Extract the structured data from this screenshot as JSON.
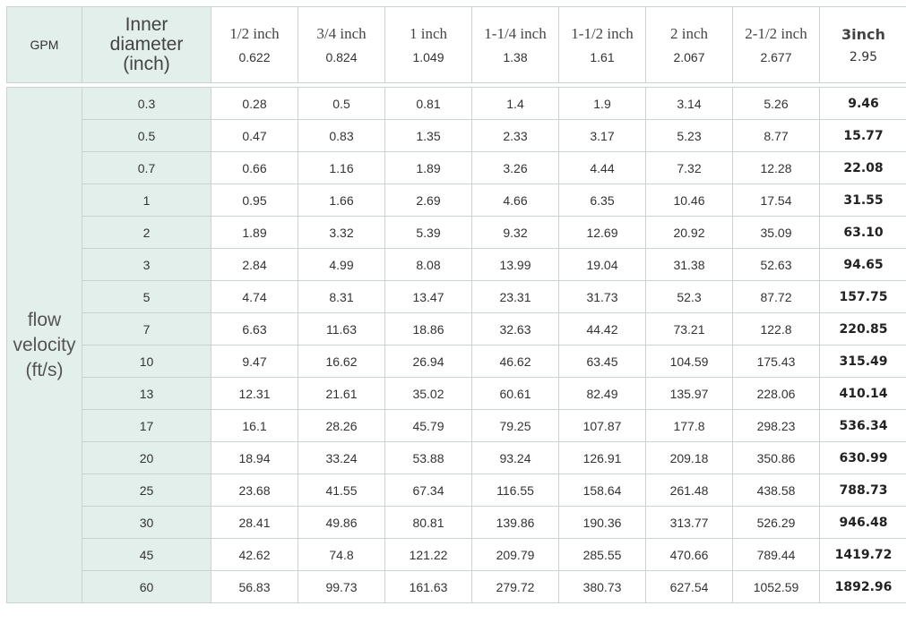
{
  "header": {
    "gpm_label": "GPM",
    "inner_label_lines": [
      "Inner",
      "diameter",
      "(inch)"
    ],
    "columns": [
      {
        "size": "1/2  inch",
        "diameter": "0.622"
      },
      {
        "size": "3/4 inch",
        "diameter": "0.824"
      },
      {
        "size": "1 inch",
        "diameter": "1.049"
      },
      {
        "size": "1-1/4 inch",
        "diameter": "1.38"
      },
      {
        "size": "1-1/2 inch",
        "diameter": "1.61"
      },
      {
        "size": "2 inch",
        "diameter": "2.067"
      },
      {
        "size": "2-1/2 inch",
        "diameter": "2.677"
      },
      {
        "size": "3inch",
        "diameter": "2.95"
      }
    ]
  },
  "row_label_lines": [
    "flow",
    "velocity",
    "(ft/s)"
  ],
  "rows": [
    {
      "gpm": "0.3",
      "values": [
        "0.28",
        "0.5",
        "0.81",
        "1.4",
        "1.9",
        "3.14",
        "5.26",
        "9.46"
      ]
    },
    {
      "gpm": "0.5",
      "values": [
        "0.47",
        "0.83",
        "1.35",
        "2.33",
        "3.17",
        "5.23",
        "8.77",
        "15.77"
      ]
    },
    {
      "gpm": "0.7",
      "values": [
        "0.66",
        "1.16",
        "1.89",
        "3.26",
        "4.44",
        "7.32",
        "12.28",
        "22.08"
      ]
    },
    {
      "gpm": "1",
      "values": [
        "0.95",
        "1.66",
        "2.69",
        "4.66",
        "6.35",
        "10.46",
        "17.54",
        "31.55"
      ]
    },
    {
      "gpm": "2",
      "values": [
        "1.89",
        "3.32",
        "5.39",
        "9.32",
        "12.69",
        "20.92",
        "35.09",
        "63.10"
      ]
    },
    {
      "gpm": "3",
      "values": [
        "2.84",
        "4.99",
        "8.08",
        "13.99",
        "19.04",
        "31.38",
        "52.63",
        "94.65"
      ]
    },
    {
      "gpm": "5",
      "values": [
        "4.74",
        "8.31",
        "13.47",
        "23.31",
        "31.73",
        "52.3",
        "87.72",
        "157.75"
      ]
    },
    {
      "gpm": "7",
      "values": [
        "6.63",
        "11.63",
        "18.86",
        "32.63",
        "44.42",
        "73.21",
        "122.8",
        "220.85"
      ]
    },
    {
      "gpm": "10",
      "values": [
        "9.47",
        "16.62",
        "26.94",
        "46.62",
        "63.45",
        "104.59",
        "175.43",
        "315.49"
      ]
    },
    {
      "gpm": "13",
      "values": [
        "12.31",
        "21.61",
        "35.02",
        "60.61",
        "82.49",
        "135.97",
        "228.06",
        "410.14"
      ]
    },
    {
      "gpm": "17",
      "values": [
        "16.1",
        "28.26",
        "45.79",
        "79.25",
        "107.87",
        "177.8",
        "298.23",
        "536.34"
      ]
    },
    {
      "gpm": "20",
      "values": [
        "18.94",
        "33.24",
        "53.88",
        "93.24",
        "126.91",
        "209.18",
        "350.86",
        "630.99"
      ]
    },
    {
      "gpm": "25",
      "values": [
        "23.68",
        "41.55",
        "67.34",
        "116.55",
        "158.64",
        "261.48",
        "438.58",
        "788.73"
      ]
    },
    {
      "gpm": "30",
      "values": [
        "28.41",
        "49.86",
        "80.81",
        "139.86",
        "190.36",
        "313.77",
        "526.29",
        "946.48"
      ]
    },
    {
      "gpm": "45",
      "values": [
        "42.62",
        "74.8",
        "121.22",
        "209.79",
        "285.55",
        "470.66",
        "789.44",
        "1419.72"
      ]
    },
    {
      "gpm": "60",
      "values": [
        "56.83",
        "99.73",
        "161.63",
        "279.72",
        "380.73",
        "627.54",
        "1052.59",
        "1892.96"
      ]
    }
  ],
  "colors": {
    "label_bg": "#e3efea",
    "border": "#c9d3d0"
  }
}
